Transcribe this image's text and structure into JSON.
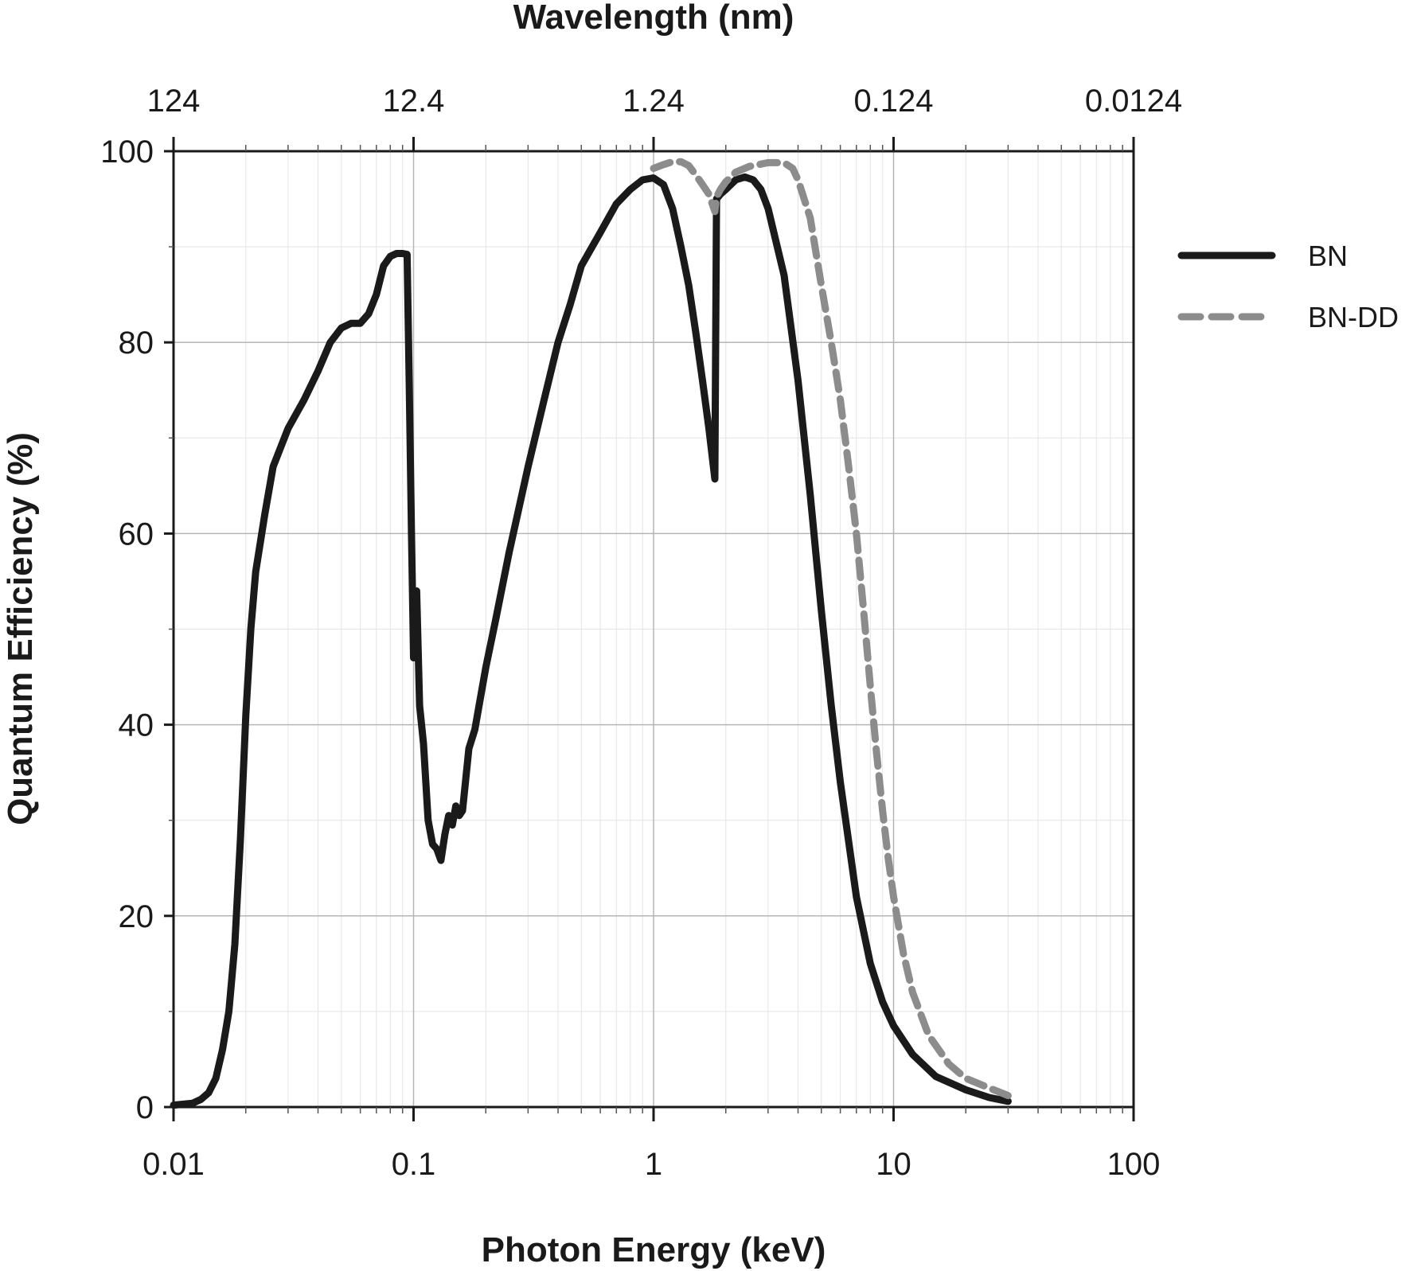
{
  "chart_data": {
    "type": "line",
    "title": "",
    "xlabel": "Photon Energy (keV)",
    "ylabel": "Quantum Efficiency (%)",
    "x2label": "Wavelength (nm)",
    "xscale": "log",
    "xlim": [
      0.01,
      100
    ],
    "ylim": [
      0,
      100
    ],
    "xticks": [
      "0.01",
      "0.1",
      "1",
      "10",
      "100"
    ],
    "x2ticks": [
      "124",
      "12.4",
      "1.24",
      "0.124",
      "0.0124"
    ],
    "yticks": [
      "0",
      "20",
      "40",
      "60",
      "80",
      "100"
    ],
    "grid": true,
    "legend_position": "right",
    "series": [
      {
        "name": "BN",
        "color": "#1a1a1a",
        "style": "solid",
        "points": [
          [
            0.01,
            0.2
          ],
          [
            0.012,
            0.4
          ],
          [
            0.013,
            0.8
          ],
          [
            0.014,
            1.5
          ],
          [
            0.015,
            3
          ],
          [
            0.016,
            6
          ],
          [
            0.017,
            10
          ],
          [
            0.018,
            17
          ],
          [
            0.019,
            28
          ],
          [
            0.02,
            41
          ],
          [
            0.021,
            50
          ],
          [
            0.022,
            56
          ],
          [
            0.024,
            62
          ],
          [
            0.026,
            67
          ],
          [
            0.03,
            71
          ],
          [
            0.035,
            74
          ],
          [
            0.04,
            77
          ],
          [
            0.045,
            80
          ],
          [
            0.05,
            81.5
          ],
          [
            0.055,
            82
          ],
          [
            0.06,
            82
          ],
          [
            0.065,
            83
          ],
          [
            0.07,
            85
          ],
          [
            0.075,
            88
          ],
          [
            0.08,
            89
          ],
          [
            0.085,
            89.3
          ],
          [
            0.09,
            89.3
          ],
          [
            0.094,
            89.2
          ],
          [
            0.096,
            75
          ],
          [
            0.098,
            60
          ],
          [
            0.1,
            47
          ],
          [
            0.103,
            54
          ],
          [
            0.106,
            42
          ],
          [
            0.11,
            38
          ],
          [
            0.115,
            30
          ],
          [
            0.12,
            27.5
          ],
          [
            0.125,
            27
          ],
          [
            0.13,
            25.8
          ],
          [
            0.135,
            28.5
          ],
          [
            0.14,
            30.5
          ],
          [
            0.145,
            29.5
          ],
          [
            0.15,
            31.5
          ],
          [
            0.155,
            30.5
          ],
          [
            0.16,
            31
          ],
          [
            0.17,
            37.5
          ],
          [
            0.18,
            39.5
          ],
          [
            0.2,
            46
          ],
          [
            0.22,
            51
          ],
          [
            0.25,
            58
          ],
          [
            0.3,
            67
          ],
          [
            0.35,
            74
          ],
          [
            0.4,
            80
          ],
          [
            0.45,
            84
          ],
          [
            0.5,
            88
          ],
          [
            0.6,
            91.5
          ],
          [
            0.7,
            94.5
          ],
          [
            0.8,
            96
          ],
          [
            0.9,
            97
          ],
          [
            1.0,
            97.2
          ],
          [
            1.1,
            96.5
          ],
          [
            1.2,
            94
          ],
          [
            1.3,
            90
          ],
          [
            1.4,
            86
          ],
          [
            1.5,
            81
          ],
          [
            1.6,
            76
          ],
          [
            1.7,
            71
          ],
          [
            1.8,
            65.7
          ],
          [
            1.83,
            95
          ],
          [
            1.9,
            95.5
          ],
          [
            2.0,
            96
          ],
          [
            2.2,
            97
          ],
          [
            2.4,
            97.3
          ],
          [
            2.6,
            97
          ],
          [
            2.8,
            96
          ],
          [
            3.0,
            94
          ],
          [
            3.5,
            87
          ],
          [
            4.0,
            76
          ],
          [
            4.5,
            64
          ],
          [
            5.0,
            52
          ],
          [
            5.5,
            42
          ],
          [
            6.0,
            34
          ],
          [
            7.0,
            22
          ],
          [
            8.0,
            15
          ],
          [
            9.0,
            11
          ],
          [
            10.0,
            8.5
          ],
          [
            12.0,
            5.5
          ],
          [
            15.0,
            3.2
          ],
          [
            20.0,
            1.8
          ],
          [
            25.0,
            1.0
          ],
          [
            30.0,
            0.6
          ]
        ]
      },
      {
        "name": "BN-DD",
        "color": "#8c8c8c",
        "style": "dashed",
        "points": [
          [
            1.0,
            98.2
          ],
          [
            1.1,
            98.6
          ],
          [
            1.2,
            98.9
          ],
          [
            1.3,
            98.9
          ],
          [
            1.4,
            98.5
          ],
          [
            1.5,
            97.5
          ],
          [
            1.6,
            96.5
          ],
          [
            1.7,
            95.5
          ],
          [
            1.8,
            93.7
          ],
          [
            1.83,
            95.2
          ],
          [
            1.9,
            96
          ],
          [
            2.0,
            96.8
          ],
          [
            2.2,
            97.8
          ],
          [
            2.5,
            98.4
          ],
          [
            3.0,
            98.8
          ],
          [
            3.5,
            98.8
          ],
          [
            3.8,
            98.2
          ],
          [
            4.0,
            97
          ],
          [
            4.5,
            93
          ],
          [
            5.0,
            86
          ],
          [
            5.5,
            80
          ],
          [
            6.0,
            74
          ],
          [
            6.5,
            67
          ],
          [
            7.0,
            60
          ],
          [
            7.5,
            52
          ],
          [
            8.0,
            44
          ],
          [
            8.5,
            37
          ],
          [
            9.0,
            31
          ],
          [
            9.5,
            26
          ],
          [
            10.0,
            22
          ],
          [
            11.0,
            16
          ],
          [
            12.0,
            12
          ],
          [
            14.0,
            7.5
          ],
          [
            17.0,
            4.5
          ],
          [
            20.0,
            3
          ],
          [
            25.0,
            2
          ],
          [
            30.0,
            1.2
          ]
        ]
      }
    ]
  }
}
